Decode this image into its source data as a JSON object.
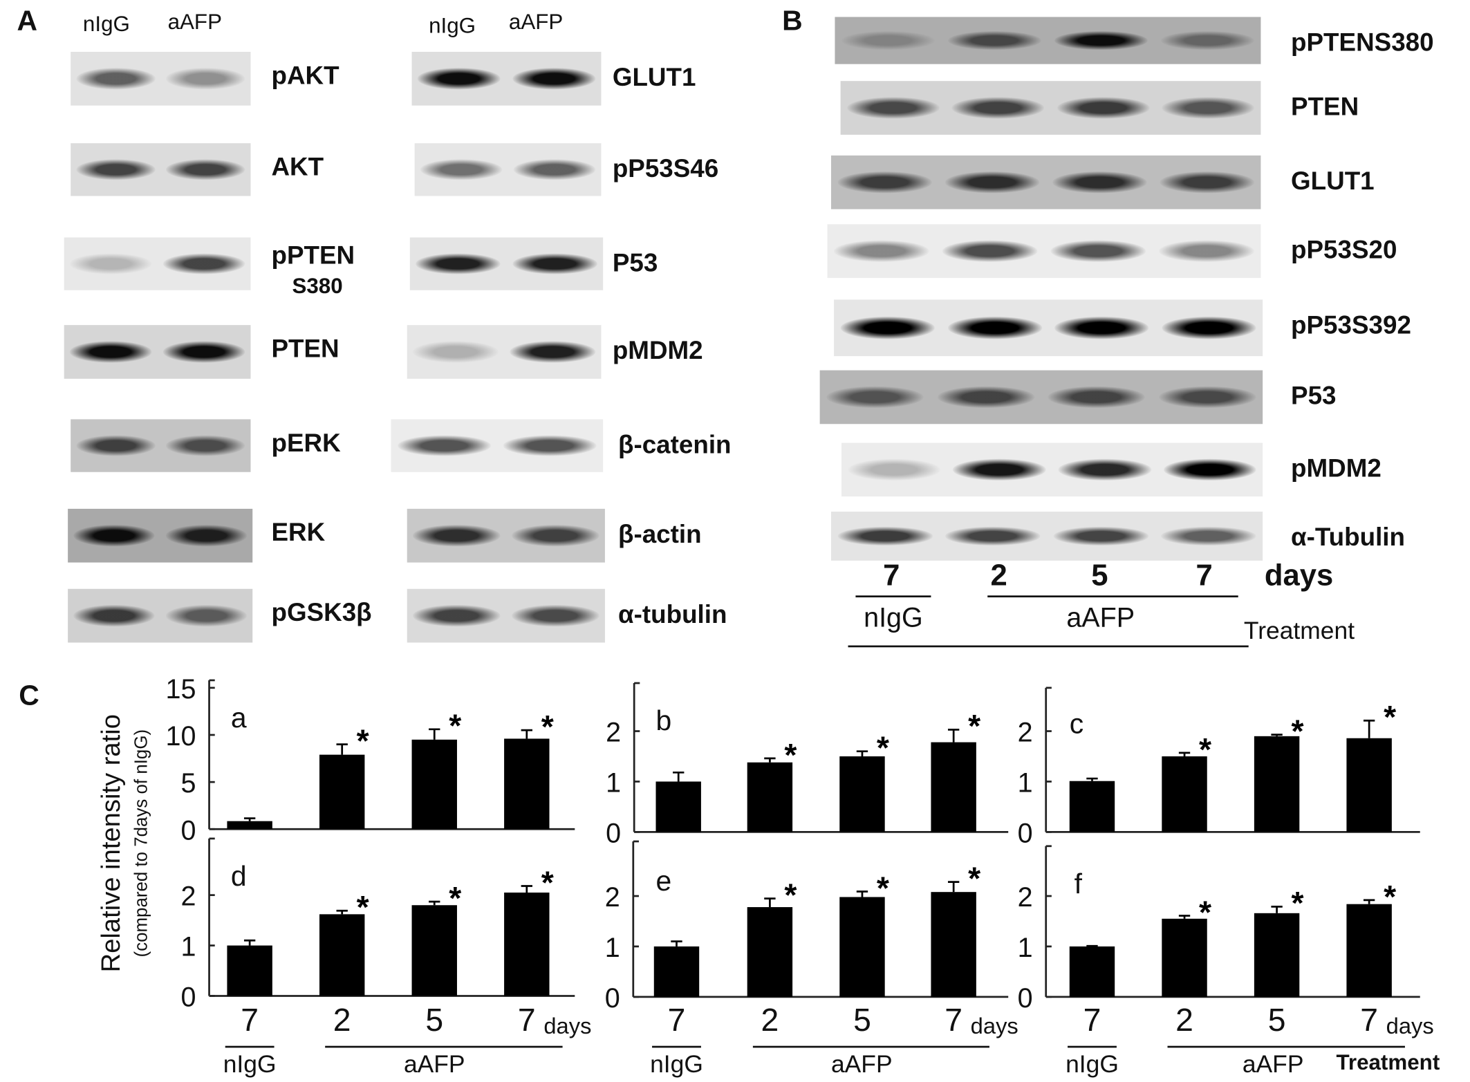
{
  "panels": {
    "a": "A",
    "b": "B",
    "c": "C"
  },
  "panel_a": {
    "lane_headers": [
      "nIgG",
      "aAFP"
    ],
    "left_blots": [
      {
        "label": "pAKT",
        "bands": [
          0.6,
          0.25
        ],
        "background": "#e2e2e2"
      },
      {
        "label": "AKT",
        "bands": [
          0.8,
          0.8
        ],
        "background": "#dcdcdc"
      },
      {
        "label": "pPTEN",
        "sub": "S380",
        "bands": [
          0.02,
          0.8
        ],
        "background": "#e8e8e8"
      },
      {
        "label": "PTEN",
        "bands": [
          0.97,
          0.97
        ],
        "background": "#d6d6d6"
      },
      {
        "label": "pERK",
        "bands": [
          0.8,
          0.7
        ],
        "background": "#c4c4c4"
      },
      {
        "label": "ERK",
        "bands": [
          0.97,
          0.92
        ],
        "background": "#a9a9a9"
      },
      {
        "label": "pGSK3β",
        "bands": [
          0.85,
          0.6
        ],
        "background": "#d0d0d0"
      }
    ],
    "right_blots": [
      {
        "label": "GLUT1",
        "bands": [
          0.97,
          0.97
        ],
        "background": "#dedede"
      },
      {
        "label": "pP53S46",
        "bands": [
          0.5,
          0.6
        ],
        "background": "#e6e6e6"
      },
      {
        "label": "P53",
        "bands": [
          0.92,
          0.92
        ],
        "background": "#e4e4e4"
      },
      {
        "label": "pMDM2",
        "bands": [
          0.05,
          0.92
        ],
        "background": "#e6e6e6"
      },
      {
        "label": "β-catenin",
        "bands": [
          0.7,
          0.7
        ],
        "background": "#ececec"
      },
      {
        "label": "β-actin",
        "bands": [
          0.88,
          0.8
        ],
        "background": "#c8c8c8"
      },
      {
        "label": "α-tubulin",
        "bands": [
          0.8,
          0.75
        ],
        "background": "#dadada"
      }
    ]
  },
  "panel_b": {
    "blots": [
      {
        "label": "pPTENS380",
        "bands": [
          0.1,
          0.7,
          0.97,
          0.4
        ],
        "background": "#adadad"
      },
      {
        "label": "PTEN",
        "bands": [
          0.75,
          0.8,
          0.85,
          0.65
        ],
        "background": "#d4d4d4"
      },
      {
        "label": "GLUT1",
        "bands": [
          0.82,
          0.88,
          0.88,
          0.82
        ],
        "background": "#bdbdbd"
      },
      {
        "label": "pP53S20",
        "bands": [
          0.35,
          0.75,
          0.7,
          0.35
        ],
        "background": "#ececec"
      },
      {
        "label": "pP53S392",
        "bands": [
          1,
          1,
          1,
          1
        ],
        "background": "#e6e6e6"
      },
      {
        "label": "P53",
        "bands": [
          0.6,
          0.75,
          0.75,
          0.7
        ],
        "background": "#b6b6b6"
      },
      {
        "label": "pMDM2",
        "bands": [
          0.05,
          0.95,
          0.9,
          1
        ],
        "background": "#ececec"
      },
      {
        "label": "α-Tubulin",
        "bands": [
          0.85,
          0.8,
          0.8,
          0.6
        ],
        "background": "#e4e4e4"
      }
    ],
    "days": [
      "7",
      "2",
      "5",
      "7"
    ],
    "days_label": "days",
    "group_nigg": "nIgG",
    "group_aafp": "aAFP",
    "treatment": "Treatment"
  },
  "panel_c": {
    "ylabel": "Relative intensity ratio",
    "ylabel_sub": "(compared to 7days of nIgG)",
    "days_label": "days",
    "group_nigg": "nIgG",
    "group_aafp": "aAFP",
    "treatment": "Treatment"
  },
  "chart_data": [
    {
      "type": "bar",
      "panel_label": "a",
      "categories": [
        "7",
        "2",
        "5",
        "7"
      ],
      "groups": [
        "nIgG",
        "aAFP",
        "aAFP",
        "aAFP"
      ],
      "values": [
        0.85,
        7.9,
        9.5,
        9.6
      ],
      "errors": [
        0.3,
        1.1,
        1.1,
        0.9
      ],
      "significant": [
        false,
        true,
        true,
        true
      ],
      "ylim": [
        0,
        15
      ],
      "yticks": [
        0,
        5,
        10,
        15
      ]
    },
    {
      "type": "bar",
      "panel_label": "b",
      "categories": [
        "7",
        "2",
        "5",
        "7"
      ],
      "groups": [
        "nIgG",
        "aAFP",
        "aAFP",
        "aAFP"
      ],
      "values": [
        1.0,
        1.38,
        1.5,
        1.78
      ],
      "errors": [
        0.18,
        0.08,
        0.1,
        0.25
      ],
      "significant": [
        false,
        true,
        true,
        true
      ],
      "ylim": [
        0,
        2.9
      ],
      "yticks": [
        0,
        1,
        2
      ]
    },
    {
      "type": "bar",
      "panel_label": "c",
      "categories": [
        "7",
        "2",
        "5",
        "7"
      ],
      "groups": [
        "nIgG",
        "aAFP",
        "aAFP",
        "aAFP"
      ],
      "values": [
        1.01,
        1.5,
        1.9,
        1.86
      ],
      "errors": [
        0.05,
        0.07,
        0.03,
        0.35
      ],
      "significant": [
        false,
        true,
        true,
        true
      ],
      "ylim": [
        0,
        2.9
      ],
      "yticks": [
        0,
        1,
        2
      ]
    },
    {
      "type": "bar",
      "panel_label": "d",
      "categories": [
        "7",
        "2",
        "5",
        "7"
      ],
      "groups": [
        "nIgG",
        "aAFP",
        "aAFP",
        "aAFP"
      ],
      "values": [
        1.0,
        1.62,
        1.8,
        2.05
      ],
      "errors": [
        0.1,
        0.07,
        0.07,
        0.13
      ],
      "significant": [
        false,
        true,
        true,
        true
      ],
      "ylim": [
        0,
        3.0
      ],
      "yticks": [
        0,
        1,
        2
      ]
    },
    {
      "type": "bar",
      "panel_label": "e",
      "categories": [
        "7",
        "2",
        "5",
        "7"
      ],
      "groups": [
        "nIgG",
        "aAFP",
        "aAFP",
        "aAFP"
      ],
      "values": [
        1.0,
        1.78,
        1.98,
        2.08
      ],
      "errors": [
        0.1,
        0.17,
        0.11,
        0.2
      ],
      "significant": [
        false,
        true,
        true,
        true
      ],
      "ylim": [
        0,
        3.0
      ],
      "yticks": [
        0,
        1,
        2
      ]
    },
    {
      "type": "bar",
      "panel_label": "f",
      "categories": [
        "7",
        "2",
        "5",
        "7"
      ],
      "groups": [
        "nIgG",
        "aAFP",
        "aAFP",
        "aAFP"
      ],
      "values": [
        1.0,
        1.55,
        1.66,
        1.84
      ],
      "errors": [
        0.01,
        0.06,
        0.13,
        0.08
      ],
      "significant": [
        false,
        true,
        true,
        true
      ],
      "ylim": [
        0,
        3.0
      ],
      "yticks": [
        0,
        1,
        2
      ]
    }
  ],
  "colors": {
    "bar": "#000000",
    "text": "#111111",
    "background": "#ffffff"
  }
}
